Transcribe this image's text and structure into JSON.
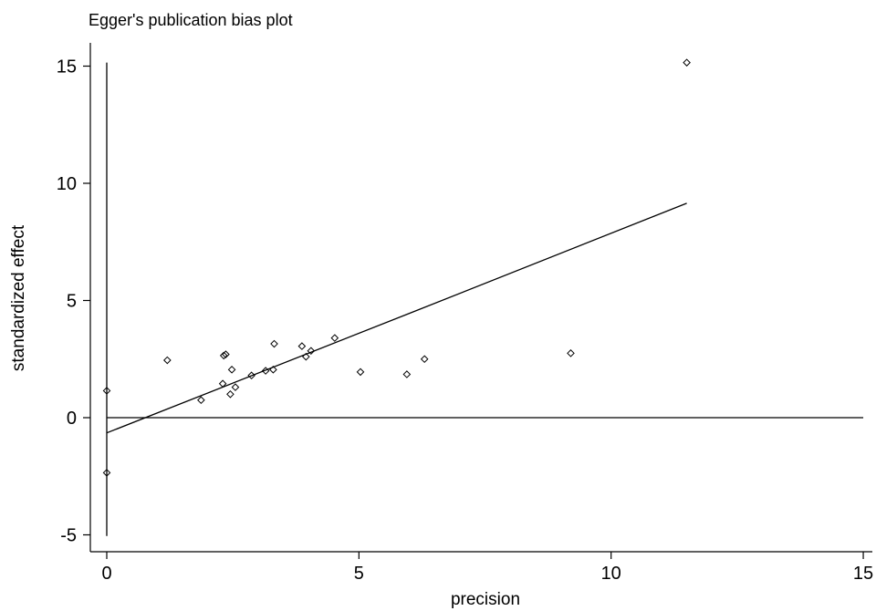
{
  "chart_data": {
    "type": "scatter",
    "title": "Egger's publication bias plot",
    "xlabel": "precision",
    "ylabel": "standardized effect",
    "xlim": [
      -0.3,
      15.3
    ],
    "ylim": [
      -5.8,
      15.8
    ],
    "x_ticks": [
      0,
      5,
      10,
      15
    ],
    "y_ticks": [
      -5,
      0,
      5,
      10,
      15
    ],
    "x_tick_labels": [
      "0",
      "5",
      "10",
      "15"
    ],
    "y_tick_labels": [
      "-5",
      "0",
      "5",
      "10",
      "15"
    ],
    "grid": false,
    "legend": "none",
    "points": [
      {
        "x": 0.0,
        "y": 1.15,
        "marker": "diamond"
      },
      {
        "x": 0.0,
        "y": -2.35,
        "marker": "diamond"
      },
      {
        "x": 1.2,
        "y": 2.45,
        "marker": "diamond"
      },
      {
        "x": 1.87,
        "y": 0.75,
        "marker": "diamond"
      },
      {
        "x": 2.3,
        "y": 1.45,
        "marker": "diamond"
      },
      {
        "x": 2.32,
        "y": 2.65,
        "marker": "diamond"
      },
      {
        "x": 2.36,
        "y": 2.7,
        "marker": "diamond"
      },
      {
        "x": 2.45,
        "y": 1.0,
        "marker": "diamond"
      },
      {
        "x": 2.48,
        "y": 2.05,
        "marker": "diamond"
      },
      {
        "x": 2.55,
        "y": 1.3,
        "marker": "diamond"
      },
      {
        "x": 2.87,
        "y": 1.8,
        "marker": "diamond"
      },
      {
        "x": 3.15,
        "y": 2.0,
        "marker": "diamond"
      },
      {
        "x": 3.3,
        "y": 2.05,
        "marker": "diamond"
      },
      {
        "x": 3.32,
        "y": 3.15,
        "marker": "diamond"
      },
      {
        "x": 3.87,
        "y": 3.05,
        "marker": "diamond"
      },
      {
        "x": 3.95,
        "y": 2.6,
        "marker": "diamond"
      },
      {
        "x": 4.05,
        "y": 2.85,
        "marker": "diamond"
      },
      {
        "x": 4.52,
        "y": 3.4,
        "marker": "diamond"
      },
      {
        "x": 5.03,
        "y": 1.95,
        "marker": "diamond"
      },
      {
        "x": 5.95,
        "y": 1.85,
        "marker": "diamond"
      },
      {
        "x": 6.3,
        "y": 2.5,
        "marker": "diamond"
      },
      {
        "x": 9.2,
        "y": 2.75,
        "marker": "diamond"
      },
      {
        "x": 11.5,
        "y": 15.15,
        "marker": "diamond"
      }
    ],
    "regression_line": {
      "x": [
        0,
        6,
        11.5
      ],
      "y": [
        -0.65,
        4.45,
        9.15
      ]
    },
    "reference_lines": [
      {
        "orientation": "horizontal",
        "y": 0,
        "x_range": [
          0,
          15
        ]
      },
      {
        "orientation": "vertical",
        "x": 0,
        "y_range": [
          -5.05,
          15.15
        ]
      }
    ]
  }
}
